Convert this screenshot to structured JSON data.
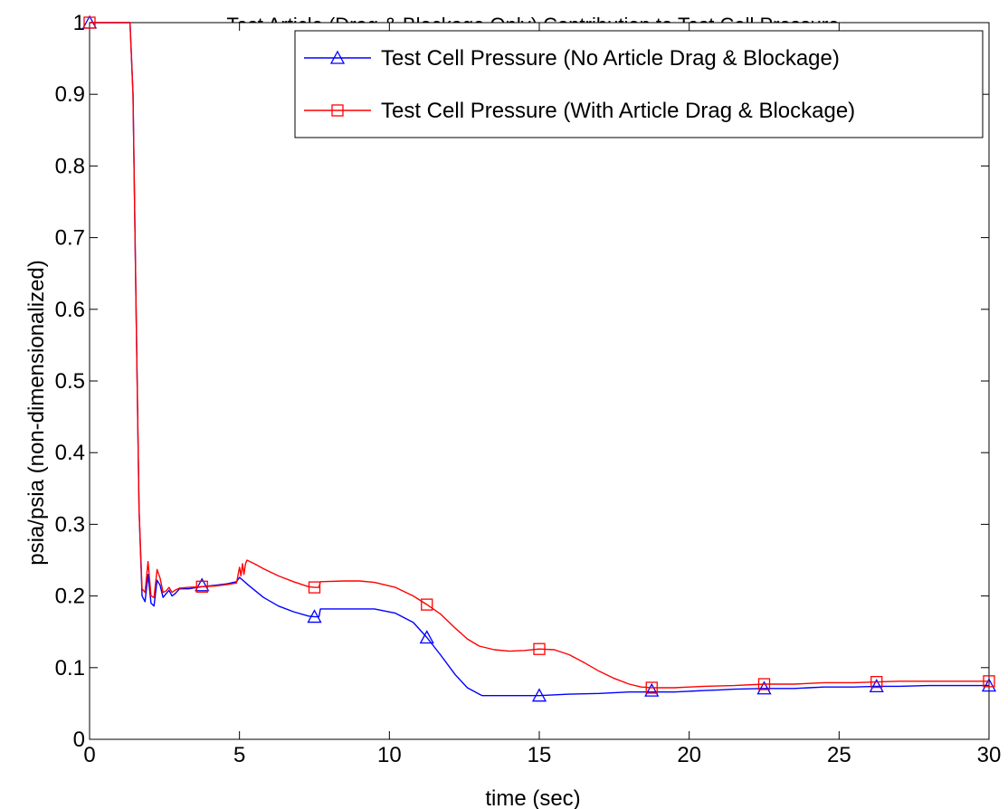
{
  "chart_data": {
    "type": "line",
    "title": "Test Article (Drag & Blockage Only) Contribution to Test Cell Pressure",
    "xlabel": "time (sec)",
    "ylabel": "psia/psia (non-dimensionalized)",
    "xlim": [
      0,
      30
    ],
    "ylim": [
      0,
      1
    ],
    "xticks": [
      0,
      5,
      10,
      15,
      20,
      25,
      30
    ],
    "xtick_labels": [
      "0",
      "5",
      "10",
      "15",
      "20",
      "25",
      "30"
    ],
    "yticks": [
      0,
      0.1,
      0.2,
      0.3,
      0.4,
      0.5,
      0.6,
      0.7,
      0.8,
      0.9,
      1
    ],
    "ytick_labels": [
      "0",
      "0.1",
      "0.2",
      "0.3",
      "0.4",
      "0.5",
      "0.6",
      "0.7",
      "0.8",
      "0.9",
      "1"
    ],
    "grid": false,
    "legend_position": "top-right",
    "series": [
      {
        "name": "Test Cell Pressure (No Article Drag & Blockage)",
        "color": "#0000ff",
        "marker": "triangle",
        "x": [
          0,
          1.35,
          1.45,
          1.55,
          1.65,
          1.75,
          1.85,
          1.95,
          2.05,
          2.15,
          2.25,
          2.35,
          2.45,
          2.55,
          2.65,
          2.75,
          2.85,
          3.0,
          3.3,
          3.75,
          4.2,
          4.6,
          4.9,
          5.0,
          5.3,
          5.8,
          6.3,
          6.8,
          7.3,
          7.5,
          7.65,
          7.7,
          8.5,
          9.5,
          10.2,
          10.8,
          11.25,
          11.7,
          12.2,
          12.6,
          13.0,
          13.1,
          14.0,
          15.0,
          16.0,
          17.0,
          18.0,
          18.75,
          19.5,
          20.5,
          21.0,
          21.5,
          22.5,
          23.5,
          24.0,
          24.5,
          25.5,
          26.25,
          27.0,
          28.0,
          29.0,
          30.0
        ],
        "y": [
          1.0,
          1.0,
          0.9,
          0.6,
          0.32,
          0.2,
          0.192,
          0.23,
          0.19,
          0.186,
          0.222,
          0.215,
          0.198,
          0.203,
          0.208,
          0.2,
          0.203,
          0.21,
          0.21,
          0.213,
          0.215,
          0.217,
          0.22,
          0.226,
          0.215,
          0.198,
          0.186,
          0.178,
          0.172,
          0.171,
          0.171,
          0.182,
          0.182,
          0.182,
          0.176,
          0.163,
          0.142,
          0.118,
          0.09,
          0.072,
          0.063,
          0.061,
          0.061,
          0.061,
          0.063,
          0.064,
          0.066,
          0.066,
          0.066,
          0.068,
          0.069,
          0.07,
          0.071,
          0.071,
          0.072,
          0.073,
          0.073,
          0.074,
          0.074,
          0.075,
          0.075,
          0.075
        ],
        "markers_x": [
          0,
          3.75,
          7.5,
          11.25,
          15.0,
          18.75,
          22.5,
          26.25,
          30.0
        ],
        "markers_y": [
          1.0,
          0.215,
          0.171,
          0.142,
          0.061,
          0.068,
          0.071,
          0.074,
          0.075
        ]
      },
      {
        "name": "Test Cell Pressure (With Article Drag & Blockage)",
        "color": "#ff0000",
        "marker": "square",
        "x": [
          0,
          1.35,
          1.45,
          1.55,
          1.65,
          1.75,
          1.85,
          1.95,
          2.05,
          2.15,
          2.25,
          2.35,
          2.45,
          2.55,
          2.65,
          2.75,
          2.85,
          3.0,
          3.3,
          3.75,
          4.2,
          4.6,
          4.9,
          5.0,
          5.05,
          5.1,
          5.15,
          5.2,
          5.25,
          5.35,
          5.5,
          5.8,
          6.3,
          6.8,
          7.3,
          7.5,
          7.65,
          7.7,
          8.5,
          9.0,
          9.5,
          10.2,
          10.8,
          11.25,
          11.7,
          12.2,
          12.6,
          13.0,
          13.5,
          14.0,
          14.5,
          15.0,
          15.5,
          16.0,
          16.5,
          17.0,
          17.5,
          18.0,
          18.4,
          18.75,
          19.5,
          20.0,
          20.5,
          21.5,
          22.5,
          23.5,
          24.0,
          24.5,
          25.5,
          26.25,
          27.0,
          28.0,
          29.0,
          30.0
        ],
        "y": [
          1.0,
          1.0,
          0.9,
          0.6,
          0.32,
          0.21,
          0.205,
          0.248,
          0.2,
          0.198,
          0.237,
          0.225,
          0.205,
          0.207,
          0.212,
          0.205,
          0.208,
          0.211,
          0.212,
          0.213,
          0.214,
          0.216,
          0.218,
          0.24,
          0.228,
          0.245,
          0.23,
          0.245,
          0.25,
          0.248,
          0.245,
          0.238,
          0.228,
          0.22,
          0.213,
          0.212,
          0.212,
          0.22,
          0.221,
          0.221,
          0.219,
          0.212,
          0.2,
          0.188,
          0.175,
          0.155,
          0.14,
          0.13,
          0.125,
          0.123,
          0.124,
          0.126,
          0.125,
          0.118,
          0.107,
          0.095,
          0.085,
          0.077,
          0.073,
          0.072,
          0.072,
          0.073,
          0.074,
          0.075,
          0.077,
          0.077,
          0.078,
          0.079,
          0.079,
          0.08,
          0.081,
          0.081,
          0.081,
          0.081
        ],
        "markers_x": [
          0,
          3.75,
          7.5,
          11.25,
          15.0,
          18.75,
          22.5,
          26.25,
          30.0
        ],
        "markers_y": [
          1.0,
          0.213,
          0.212,
          0.188,
          0.126,
          0.072,
          0.077,
          0.08,
          0.081
        ]
      }
    ]
  }
}
